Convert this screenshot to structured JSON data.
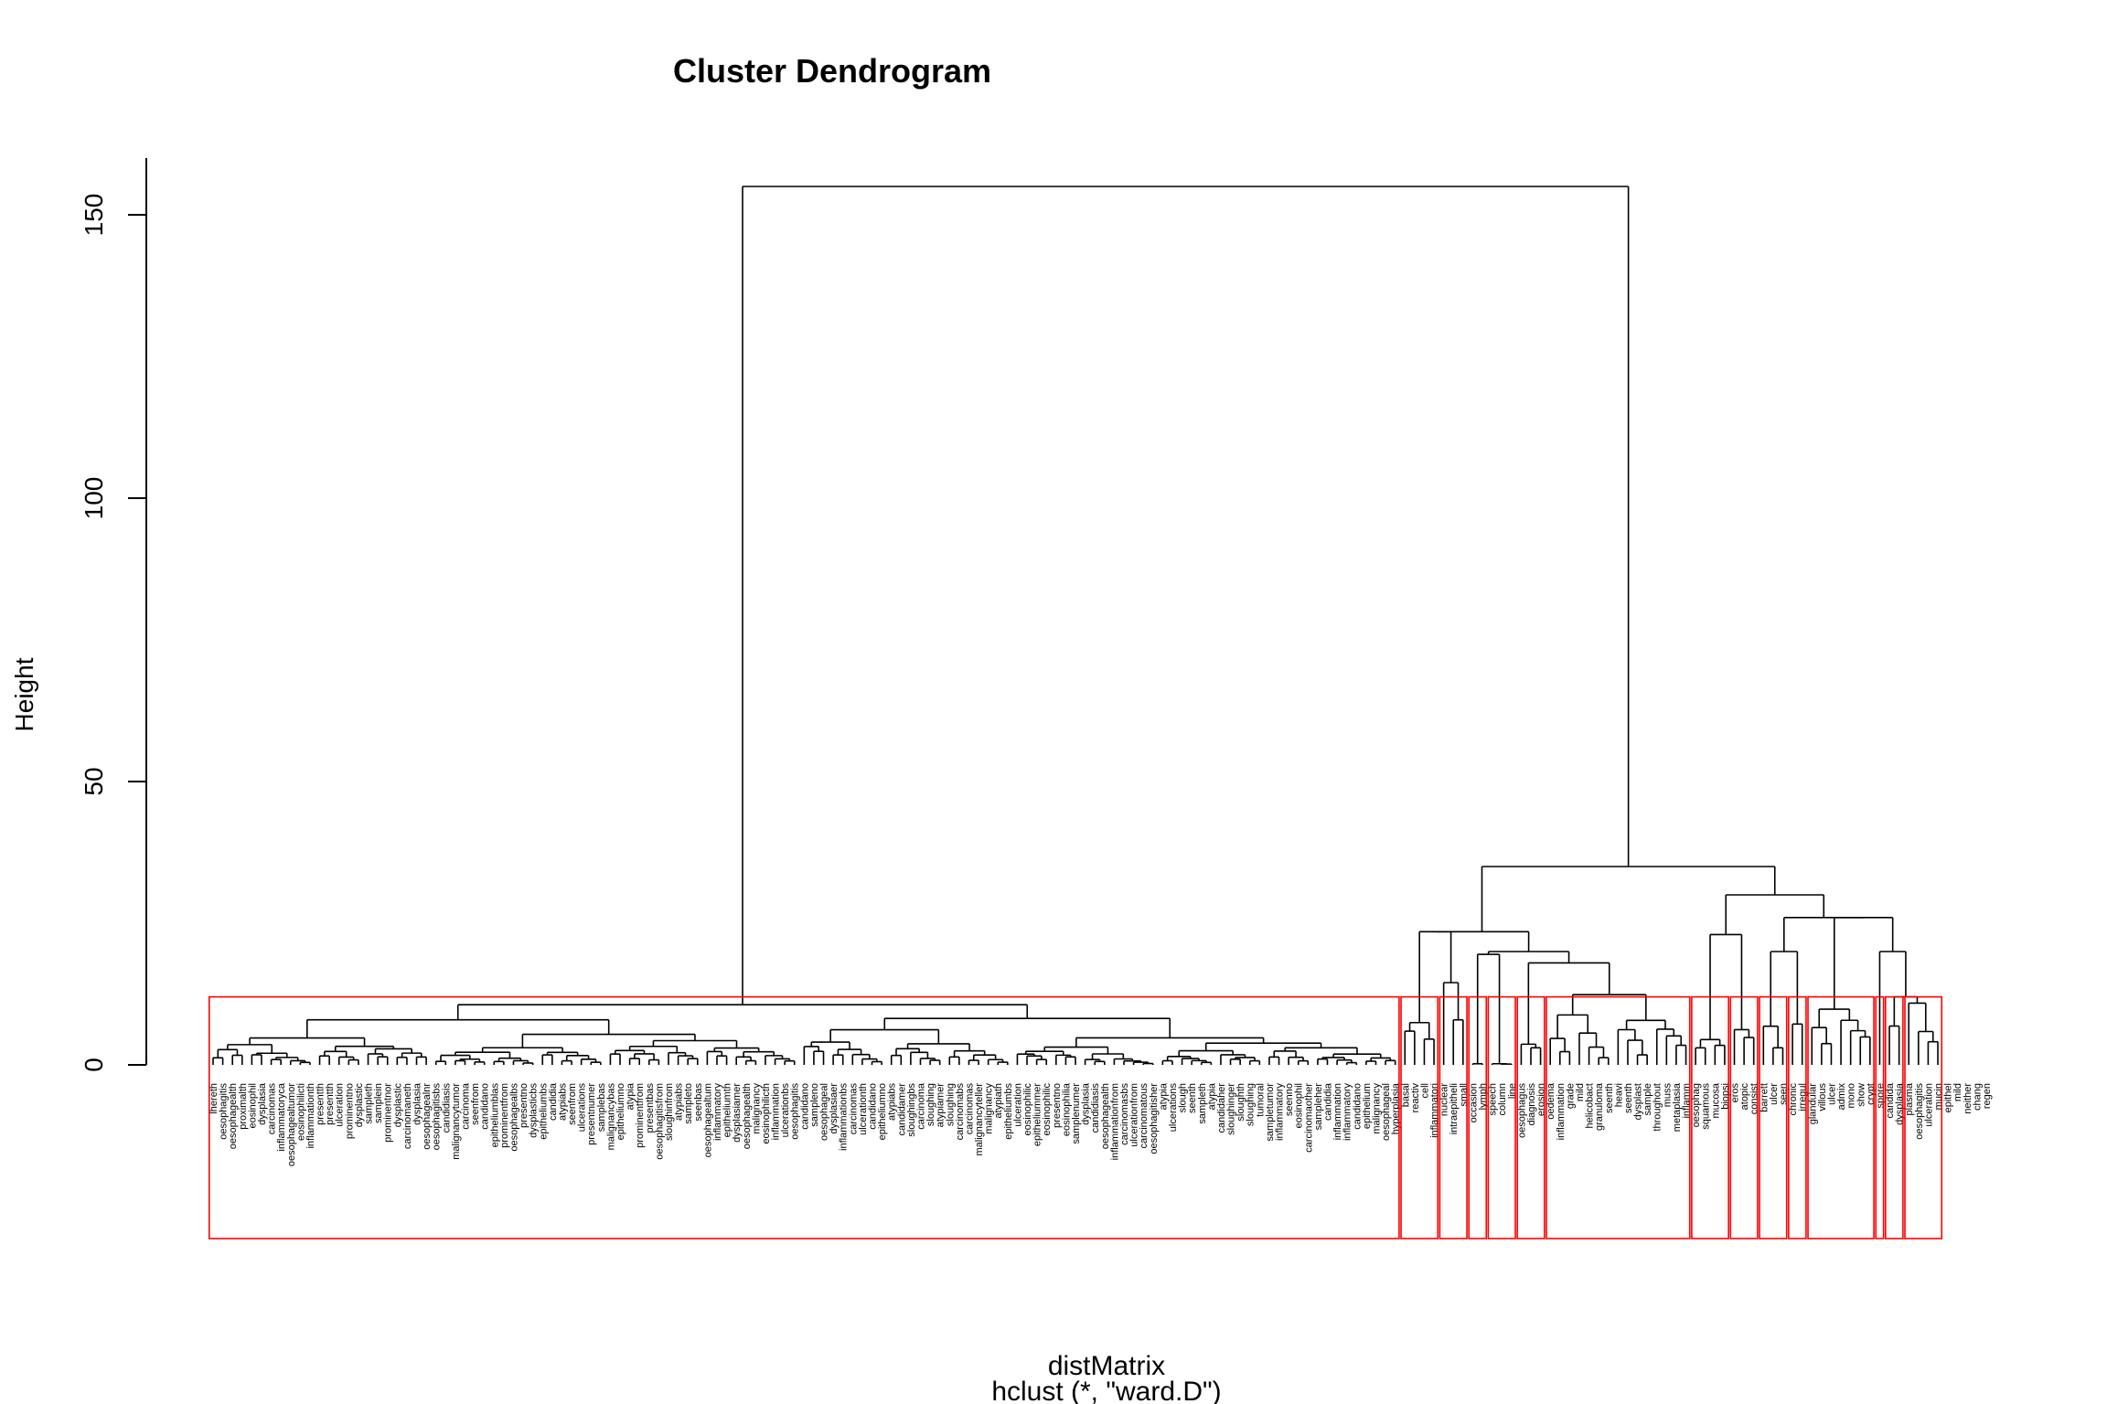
{
  "chart_data": {
    "type": "dendrogram",
    "title": "Cluster Dendrogram",
    "subtitle": "hclust (*, \"ward.D\")",
    "xlabel": "distMatrix",
    "ylabel": "Height",
    "ylim": [
      0,
      160
    ],
    "yticks": [
      0,
      50,
      100,
      150
    ],
    "root_height": 155,
    "cut_height": 12,
    "colors": {
      "line": "#000000",
      "rect": "#ff0000"
    },
    "leaves": [
      "lhereth",
      "oesophagitis",
      "oesophagealth",
      "proximalth",
      "eosinophil",
      "dysplasia",
      "carcinomas",
      "inflammatoryca",
      "oesophagealtumor",
      "eosinophilicti",
      "inflammationth",
      "presentth",
      "presentth",
      "ulceration",
      "prominentno",
      "dysplastic",
      "sampleth",
      "samplein",
      "prominentnor",
      "dysplastic",
      "carcinomaneth",
      "dysplasia",
      "oesophagealnr",
      "oesophagitisbs",
      "candidiasis",
      "malignancytumor",
      "carcinoma",
      "seenfrom",
      "candidano",
      "epitheliumblas",
      "prominentfrom",
      "oesophagealbs",
      "presentno",
      "dysplasticbs",
      "epitheliumbs",
      "candidia",
      "atypiabs",
      "seenfrom",
      "ulcerations",
      "presentnumer",
      "samplebas",
      "malignancybas",
      "epitheliumno",
      "atypia",
      "prominentfrom",
      "presentbas",
      "oesophagitisfrom",
      "sloughinfrom",
      "atypiabs",
      "sampleto",
      "seenbas",
      "oesophagealtum",
      "inflammatory",
      "epitheliumth",
      "dysplasiamer",
      "oesophagealth",
      "malignancy",
      "eosinophilicth",
      "inflammation",
      "ulcerationbs",
      "oesophagitis",
      "candidano",
      "sampleno",
      "oesophageal",
      "dysplasiaer",
      "inflammationbs",
      "carcinomas",
      "ulcerationth",
      "candidano",
      "epitheliumno",
      "atypiabs",
      "candidamer",
      "sloughingbs",
      "carcinoma",
      "sloughing",
      "atypiamer",
      "sloughing",
      "carcinomabs",
      "carcinomas",
      "malignancyteller",
      "malignancy",
      "atypiath",
      "epitheliumbs",
      "ulceration",
      "eosinophilic",
      "epitheliummer",
      "eosinophilic",
      "presentno",
      "eosinophilia",
      "samplenumer",
      "dysplasia",
      "candidiasis",
      "oesophagealth",
      "inflammationfrom",
      "carcinomasbs",
      "ulcerationfrom",
      "carcinomatous",
      "oesophagitisher",
      "atypia",
      "ulcerations",
      "slough",
      "seenth",
      "sampleth",
      "atypia",
      "candidaher",
      "sloughinger",
      "sloughth",
      "sloughing",
      "tumoral",
      "sampletumor",
      "inflammatory",
      "seenno",
      "eosinophil",
      "carcinomaother",
      "sampleher",
      "candidia",
      "inflammation",
      "inflammatory",
      "candidano",
      "epithelium",
      "malignancy",
      "oesophageal",
      "hyperplasia",
      "basal",
      "reactiv",
      "cell",
      "inflammatori",
      "nuclear",
      "intraepitheli",
      "small",
      "occasion",
      "lymph",
      "speech",
      "column",
      "line",
      "oesophagus",
      "diagnosis",
      "erosion",
      "oedema",
      "inflammation",
      "grade",
      "mild",
      "helicobact",
      "granuloma",
      "seenth",
      "heavi",
      "seenth",
      "dysplast",
      "sample",
      "throughout",
      "muss",
      "metaplasia",
      "inflamm",
      "oesophag",
      "squamous",
      "mucosa",
      "biopsi",
      "eros",
      "atopic",
      "consist",
      "barrett",
      "ulcer",
      "seen",
      "chronic",
      "irregul",
      "glandular",
      "villous",
      "ulcer",
      "admix",
      "mono",
      "show",
      "crypt",
      "spore",
      "candida",
      "dysplasia",
      "plasma",
      "oesophagitis",
      "ulceration",
      "mucin",
      "epithel",
      "mild",
      "neither",
      "chang",
      "regen"
    ]
  }
}
